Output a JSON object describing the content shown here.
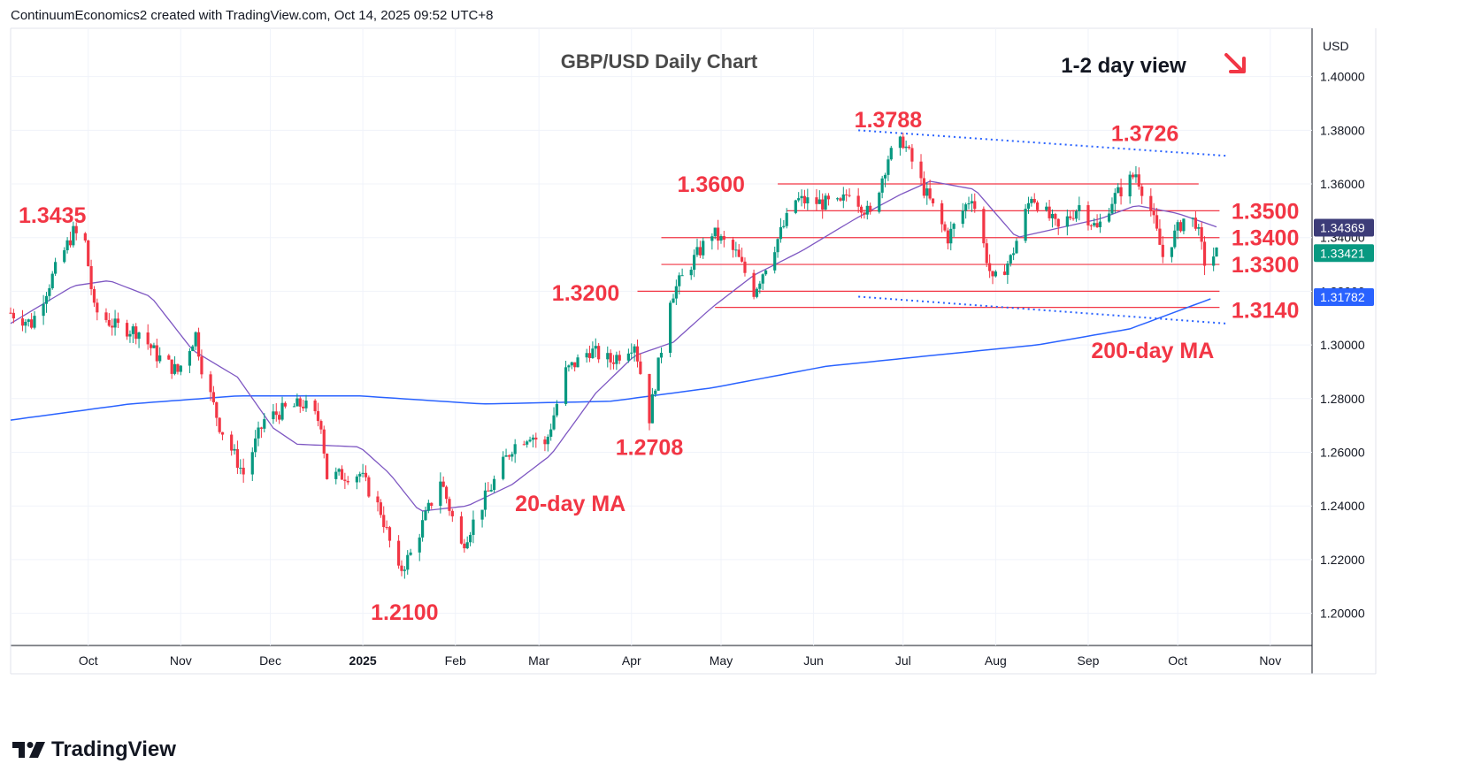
{
  "header": "ContinuumEconomics2 created with TradingView.com, Oct 14, 2025 09:52 UTC+8",
  "brand": "TradingView",
  "chart_data": {
    "type": "candlestick",
    "title": "GBP/USD Daily Chart",
    "subtitle": "1-2 day view",
    "currency": "USD",
    "ylim": [
      1.188,
      1.418
    ],
    "yticks": [
      "1.40000",
      "1.38000",
      "1.36000",
      "1.34000",
      "1.32000",
      "1.30000",
      "1.28000",
      "1.26000",
      "1.24000",
      "1.22000",
      "1.20000"
    ],
    "xticks": [
      {
        "label": "Oct",
        "date": "2024-10-01",
        "bold": false
      },
      {
        "label": "Nov",
        "date": "2024-11-01",
        "bold": false
      },
      {
        "label": "Dec",
        "date": "2024-12-01",
        "bold": false
      },
      {
        "label": "2025",
        "date": "2025-01-01",
        "bold": true
      },
      {
        "label": "Feb",
        "date": "2025-02-01",
        "bold": false
      },
      {
        "label": "Mar",
        "date": "2025-03-01",
        "bold": false
      },
      {
        "label": "Apr",
        "date": "2025-04-01",
        "bold": false
      },
      {
        "label": "May",
        "date": "2025-05-01",
        "bold": false
      },
      {
        "label": "Jun",
        "date": "2025-06-01",
        "bold": false
      },
      {
        "label": "Jul",
        "date": "2025-07-01",
        "bold": false
      },
      {
        "label": "Aug",
        "date": "2025-08-01",
        "bold": false
      },
      {
        "label": "Sep",
        "date": "2025-09-01",
        "bold": false
      },
      {
        "label": "Oct",
        "date": "2025-10-01",
        "bold": false
      },
      {
        "label": "Nov",
        "date": "2025-11-01",
        "bold": false
      }
    ],
    "xrange": [
      "2024-09-05",
      "2025-11-15"
    ],
    "price_path": [
      [
        "2024-09-05",
        1.312
      ],
      [
        "2024-09-12",
        1.308
      ],
      [
        "2024-09-20",
        1.328
      ],
      [
        "2024-09-26",
        1.342
      ],
      [
        "2024-09-30",
        1.338
      ],
      [
        "2024-10-03",
        1.313
      ],
      [
        "2024-10-10",
        1.307
      ],
      [
        "2024-10-18",
        1.305
      ],
      [
        "2024-10-24",
        1.296
      ],
      [
        "2024-10-31",
        1.29
      ],
      [
        "2024-11-06",
        1.304
      ],
      [
        "2024-11-08",
        1.292
      ],
      [
        "2024-11-14",
        1.27
      ],
      [
        "2024-11-22",
        1.252
      ],
      [
        "2024-11-29",
        1.272
      ],
      [
        "2024-12-06",
        1.276
      ],
      [
        "2024-12-12",
        1.278
      ],
      [
        "2024-12-18",
        1.271
      ],
      [
        "2024-12-20",
        1.251
      ],
      [
        "2024-12-31",
        1.252
      ],
      [
        "2025-01-07",
        1.238
      ],
      [
        "2025-01-13",
        1.215
      ],
      [
        "2025-01-17",
        1.222
      ],
      [
        "2025-01-27",
        1.25
      ],
      [
        "2025-02-03",
        1.225
      ],
      [
        "2025-02-12",
        1.245
      ],
      [
        "2025-02-20",
        1.262
      ],
      [
        "2025-02-26",
        1.267
      ],
      [
        "2025-03-03",
        1.262
      ],
      [
        "2025-03-10",
        1.29
      ],
      [
        "2025-03-18",
        1.298
      ],
      [
        "2025-03-25",
        1.294
      ],
      [
        "2025-04-02",
        1.301
      ],
      [
        "2025-04-07",
        1.273
      ],
      [
        "2025-04-14",
        1.318
      ],
      [
        "2025-04-22",
        1.332
      ],
      [
        "2025-04-28",
        1.342
      ],
      [
        "2025-05-06",
        1.334
      ],
      [
        "2025-05-12",
        1.32
      ],
      [
        "2025-05-19",
        1.337
      ],
      [
        "2025-05-26",
        1.354
      ],
      [
        "2025-06-03",
        1.353
      ],
      [
        "2025-06-10",
        1.352
      ],
      [
        "2025-06-13",
        1.358
      ],
      [
        "2025-06-20",
        1.348
      ],
      [
        "2025-06-26",
        1.37
      ],
      [
        "2025-07-01",
        1.376
      ],
      [
        "2025-07-08",
        1.358
      ],
      [
        "2025-07-16",
        1.34
      ],
      [
        "2025-07-24",
        1.356
      ],
      [
        "2025-07-31",
        1.323
      ],
      [
        "2025-08-06",
        1.332
      ],
      [
        "2025-08-13",
        1.356
      ],
      [
        "2025-08-22",
        1.343
      ],
      [
        "2025-08-29",
        1.352
      ],
      [
        "2025-09-04",
        1.343
      ],
      [
        "2025-09-09",
        1.354
      ],
      [
        "2025-09-17",
        1.364
      ],
      [
        "2025-09-22",
        1.35
      ],
      [
        "2025-09-26",
        1.333
      ],
      [
        "2025-10-03",
        1.347
      ],
      [
        "2025-10-07",
        1.346
      ],
      [
        "2025-10-10",
        1.331
      ],
      [
        "2025-10-14",
        1.3342
      ]
    ],
    "ma20_path": [
      [
        "2024-09-05",
        1.308
      ],
      [
        "2024-09-26",
        1.322
      ],
      [
        "2024-10-08",
        1.324
      ],
      [
        "2024-10-22",
        1.318
      ],
      [
        "2024-11-05",
        1.298
      ],
      [
        "2024-11-20",
        1.288
      ],
      [
        "2024-12-02",
        1.269
      ],
      [
        "2024-12-10",
        1.263
      ],
      [
        "2024-12-31",
        1.262
      ],
      [
        "2025-01-10",
        1.252
      ],
      [
        "2025-01-20",
        1.238
      ],
      [
        "2025-02-05",
        1.24
      ],
      [
        "2025-02-20",
        1.248
      ],
      [
        "2025-03-05",
        1.259
      ],
      [
        "2025-03-20",
        1.282
      ],
      [
        "2025-04-02",
        1.296
      ],
      [
        "2025-04-15",
        1.301
      ],
      [
        "2025-04-28",
        1.314
      ],
      [
        "2025-05-12",
        1.326
      ],
      [
        "2025-05-28",
        1.335
      ],
      [
        "2025-06-15",
        1.347
      ],
      [
        "2025-06-30",
        1.356
      ],
      [
        "2025-07-10",
        1.361
      ],
      [
        "2025-07-25",
        1.358
      ],
      [
        "2025-08-08",
        1.34
      ],
      [
        "2025-08-20",
        1.343
      ],
      [
        "2025-09-05",
        1.347
      ],
      [
        "2025-09-17",
        1.352
      ],
      [
        "2025-10-01",
        1.349
      ],
      [
        "2025-10-14",
        1.344
      ]
    ],
    "ma200_path": [
      [
        "2024-09-05",
        1.272
      ],
      [
        "2024-10-15",
        1.278
      ],
      [
        "2024-11-20",
        1.281
      ],
      [
        "2024-12-31",
        1.281
      ],
      [
        "2025-02-10",
        1.278
      ],
      [
        "2025-03-25",
        1.279
      ],
      [
        "2025-04-28",
        1.284
      ],
      [
        "2025-06-05",
        1.292
      ],
      [
        "2025-07-10",
        1.296
      ],
      [
        "2025-08-15",
        1.3
      ],
      [
        "2025-09-15",
        1.306
      ],
      [
        "2025-10-14",
        1.318
      ]
    ],
    "horizontal_levels": [
      {
        "price": 1.36,
        "from": "2025-05-20",
        "to": "2025-10-08"
      },
      {
        "price": 1.35,
        "from": "2025-05-23",
        "to": "2025-10-15"
      },
      {
        "price": 1.34,
        "from": "2025-04-11",
        "to": "2025-10-15"
      },
      {
        "price": 1.33,
        "from": "2025-04-11",
        "to": "2025-10-15"
      },
      {
        "price": 1.32,
        "from": "2025-04-03",
        "to": "2025-10-15"
      },
      {
        "price": 1.314,
        "from": "2025-04-29",
        "to": "2025-10-15"
      }
    ],
    "trendlines": [
      {
        "from": [
          "2025-06-16",
          1.38
        ],
        "to": [
          "2025-10-17",
          1.3705
        ]
      },
      {
        "from": [
          "2025-06-16",
          1.318
        ],
        "to": [
          "2025-10-17",
          1.308
        ]
      }
    ],
    "annotations": [
      {
        "text": "1.3435",
        "date": "2024-09-19",
        "price": 1.3485,
        "color": "red"
      },
      {
        "text": "1.2100",
        "date": "2025-01-15",
        "price": 1.2005,
        "color": "red"
      },
      {
        "text": "1.2708",
        "date": "2025-04-07",
        "price": 1.262,
        "color": "red"
      },
      {
        "text": "1.3200",
        "date": "2025-03-28",
        "price": 1.3195,
        "color": "red"
      },
      {
        "text": "1.3600",
        "date": "2025-05-09",
        "price": 1.36,
        "color": "red"
      },
      {
        "text": "1.3788",
        "date": "2025-06-26",
        "price": 1.384,
        "color": "red"
      },
      {
        "text": "1.3726",
        "date": "2025-09-20",
        "price": 1.379,
        "color": "red"
      },
      {
        "text": "1.3500",
        "date": "2025-10-19",
        "price": 1.35,
        "color": "red"
      },
      {
        "text": "1.3400",
        "date": "2025-10-19",
        "price": 1.34,
        "color": "red"
      },
      {
        "text": "1.3300",
        "date": "2025-10-19",
        "price": 1.33,
        "color": "red"
      },
      {
        "text": "1.3140",
        "date": "2025-10-19",
        "price": 1.313,
        "color": "red"
      },
      {
        "text": "20-day MA",
        "date": "2025-02-21",
        "price": 1.241,
        "color": "purple"
      },
      {
        "text": "200-day MA",
        "date": "2025-09-02",
        "price": 1.298,
        "color": "blue"
      }
    ],
    "price_tags": [
      {
        "text": "1.34369",
        "price": 1.34369,
        "color": "#3c3c78"
      },
      {
        "text": "1.33421",
        "price": 1.33421,
        "color": "#089981"
      },
      {
        "text": "1.31782",
        "price": 1.31782,
        "color": "#2962ff"
      }
    ],
    "colors": {
      "up": "#089981",
      "down": "#f23645",
      "ma20": "#7e57c2",
      "ma200": "#2962ff",
      "levels": "#f23645",
      "trend": "#2962ff",
      "annotation": "#f23645"
    }
  }
}
